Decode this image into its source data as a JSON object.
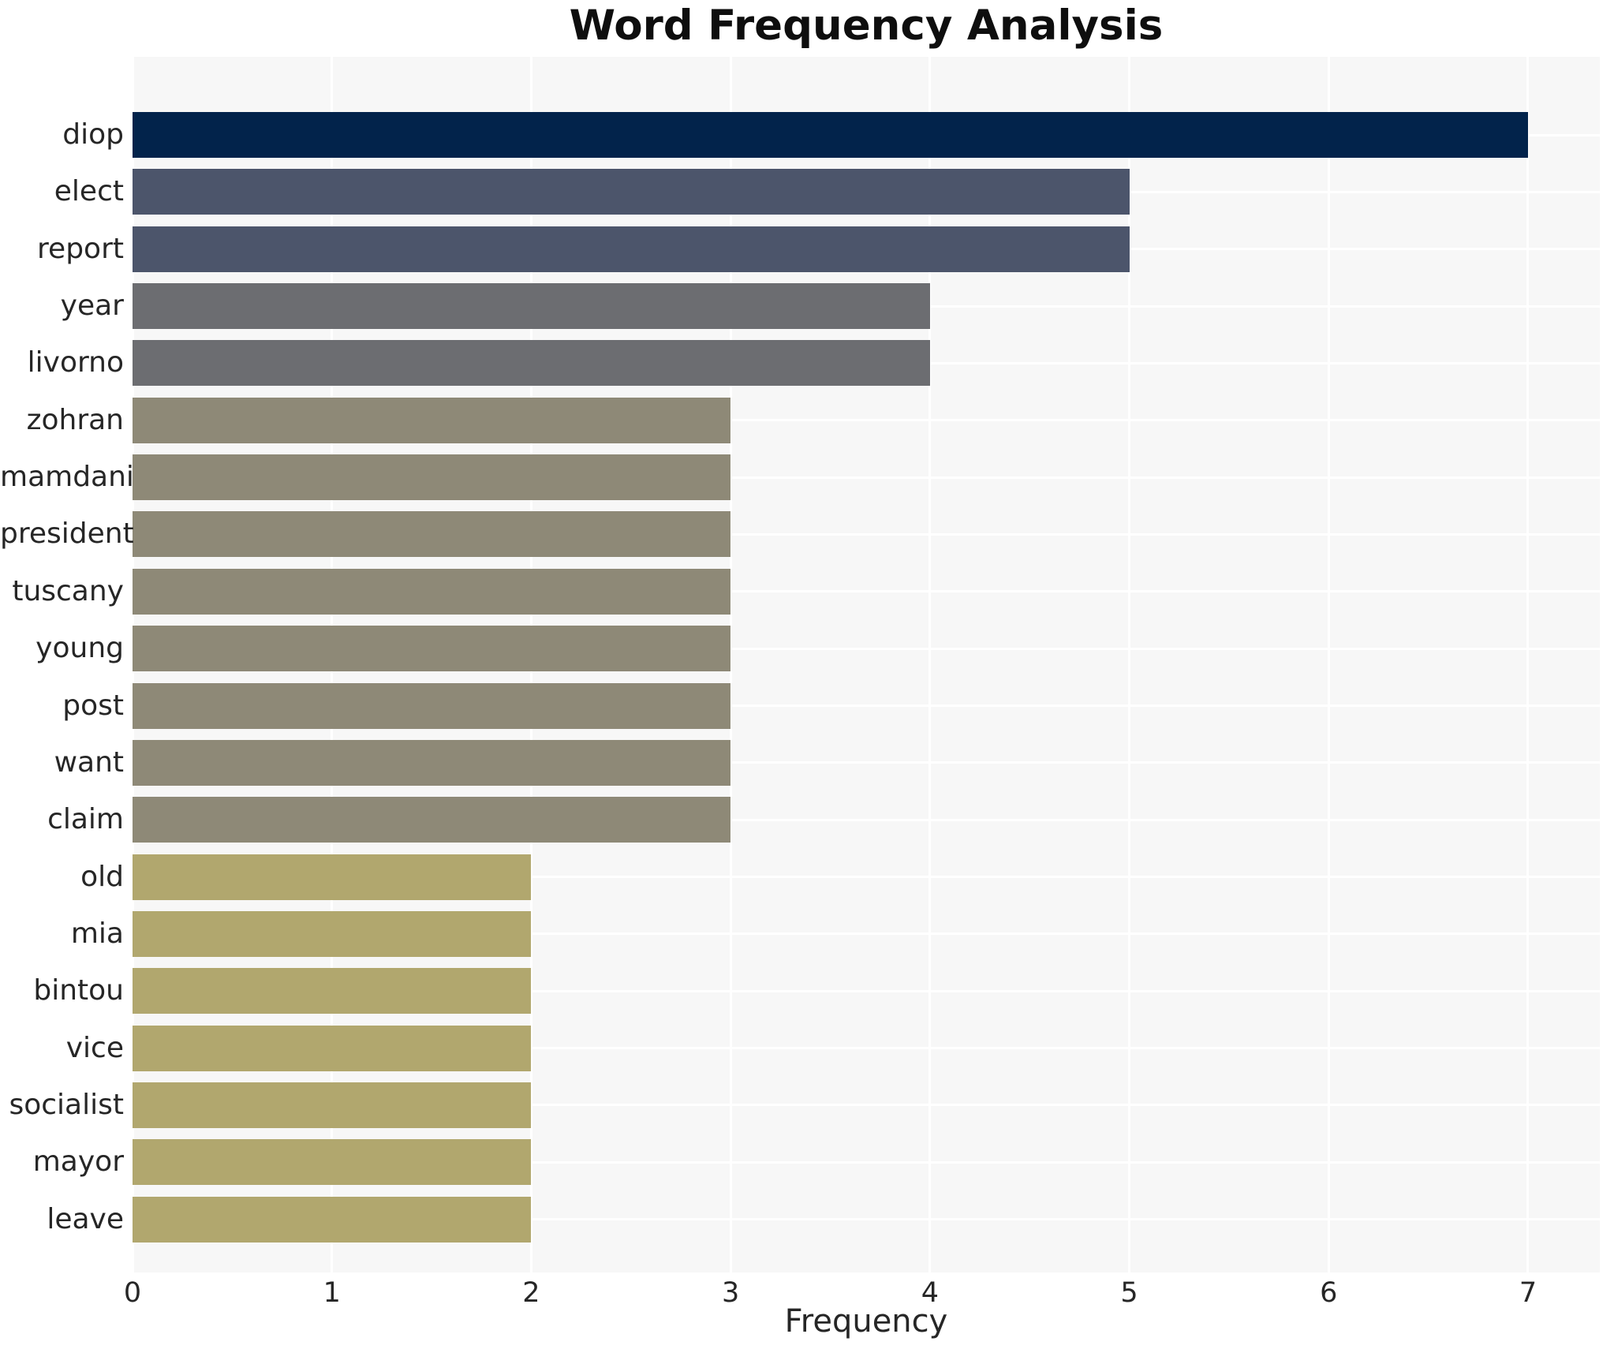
{
  "title": "Word Frequency Analysis",
  "chart_data": {
    "type": "bar",
    "orientation": "horizontal",
    "title": "Word Frequency Analysis",
    "xlabel": "Frequency",
    "ylabel": "",
    "categories": [
      "diop",
      "elect",
      "report",
      "year",
      "livorno",
      "zohran",
      "mamdani",
      "president",
      "tuscany",
      "young",
      "post",
      "want",
      "claim",
      "old",
      "mia",
      "bintou",
      "vice",
      "socialist",
      "mayor",
      "leave"
    ],
    "values": [
      7,
      5,
      5,
      4,
      4,
      3,
      3,
      3,
      3,
      3,
      3,
      3,
      3,
      2,
      2,
      2,
      2,
      2,
      2,
      2
    ],
    "bar_colors": [
      "#02234b",
      "#4c556b",
      "#4c556b",
      "#6c6d71",
      "#6c6d71",
      "#8e8977",
      "#8e8977",
      "#8e8977",
      "#8e8977",
      "#8e8977",
      "#8e8977",
      "#8e8977",
      "#8e8977",
      "#b1a76e",
      "#b1a76e",
      "#b1a76e",
      "#b1a76e",
      "#b1a76e",
      "#b1a76e",
      "#b1a76e"
    ],
    "x_ticks": [
      "0",
      "1",
      "2",
      "3",
      "4",
      "5",
      "6",
      "7"
    ],
    "x_tick_values": [
      0,
      1,
      2,
      3,
      4,
      5,
      6,
      7
    ],
    "xlim": [
      0,
      7.36
    ],
    "grid": true,
    "grid_color": "#ffffff",
    "plot_background": "#f7f7f7",
    "figure_background": "#ffffff",
    "legend": "none"
  }
}
